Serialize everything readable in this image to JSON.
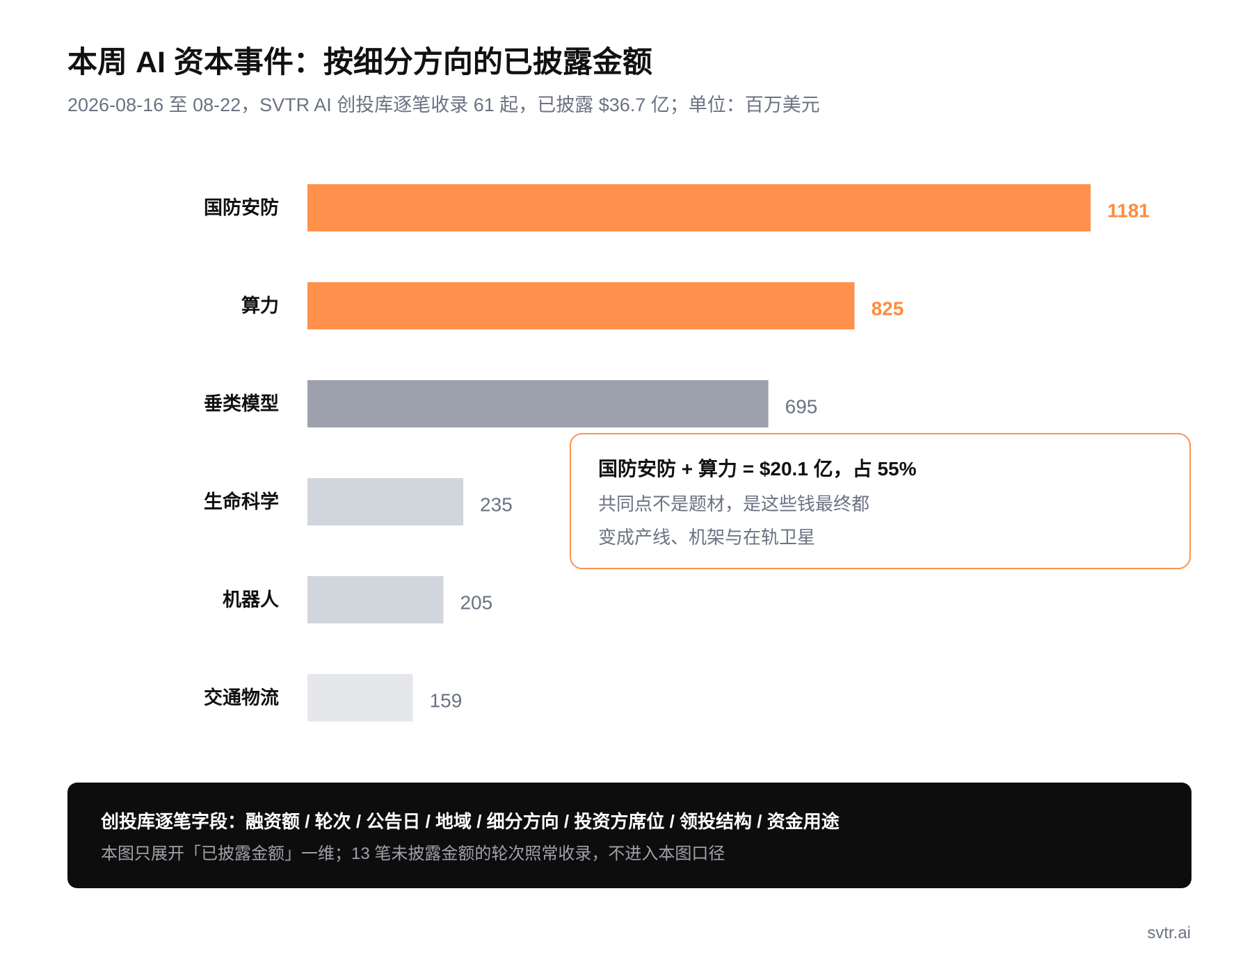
{
  "chart_data": {
    "type": "bar",
    "orientation": "horizontal",
    "title": "本周 AI 资本事件：按细分方向的已披露金额",
    "subtitle": "2026-08-16 至 08-22，SVTR AI 创投库逐笔收录 61 起，已披露 $36.7 亿；单位：百万美元",
    "categories": [
      "国防安防",
      "算力",
      "垂类模型",
      "生命科学",
      "机器人",
      "交通物流"
    ],
    "values": [
      1181,
      825,
      695,
      235,
      205,
      159
    ],
    "bar_colors": [
      "#ff914d",
      "#ff914d",
      "#9ca1ad",
      "#d1d5dc",
      "#d1d5dc",
      "#e5e7eb"
    ],
    "value_label_colors": [
      "#ff8a3d",
      "#ff8a3d",
      "#6b7280",
      "#6b7280",
      "#6b7280",
      "#6b7280"
    ],
    "value_label_bold": [
      true,
      true,
      false,
      false,
      false,
      false
    ],
    "xlim": [
      0,
      1181
    ],
    "grid": false,
    "legend": "none"
  },
  "callout": {
    "heading": "国防安防 + 算力 = $20.1 亿，占 55%",
    "line1": "共同点不是题材，是这些钱最终都",
    "line2": "变成产线、机架与在轨卫星",
    "border_color": "#ff9150"
  },
  "footer": {
    "heading": "创投库逐笔字段：融资额 / 轮次 / 公告日 / 地域 / 细分方向 / 投资方席位 / 领投结构 / 资金用途",
    "note": "本图只展开「已披露金额」一维；13 笔未披露金额的轮次照常收录，不进入本图口径"
  },
  "brand": "svtr.ai",
  "colors": {
    "accent": "#ff914d",
    "text_primary": "#111111",
    "text_muted": "#6b7280",
    "footer_bg": "#0d0d0d"
  }
}
